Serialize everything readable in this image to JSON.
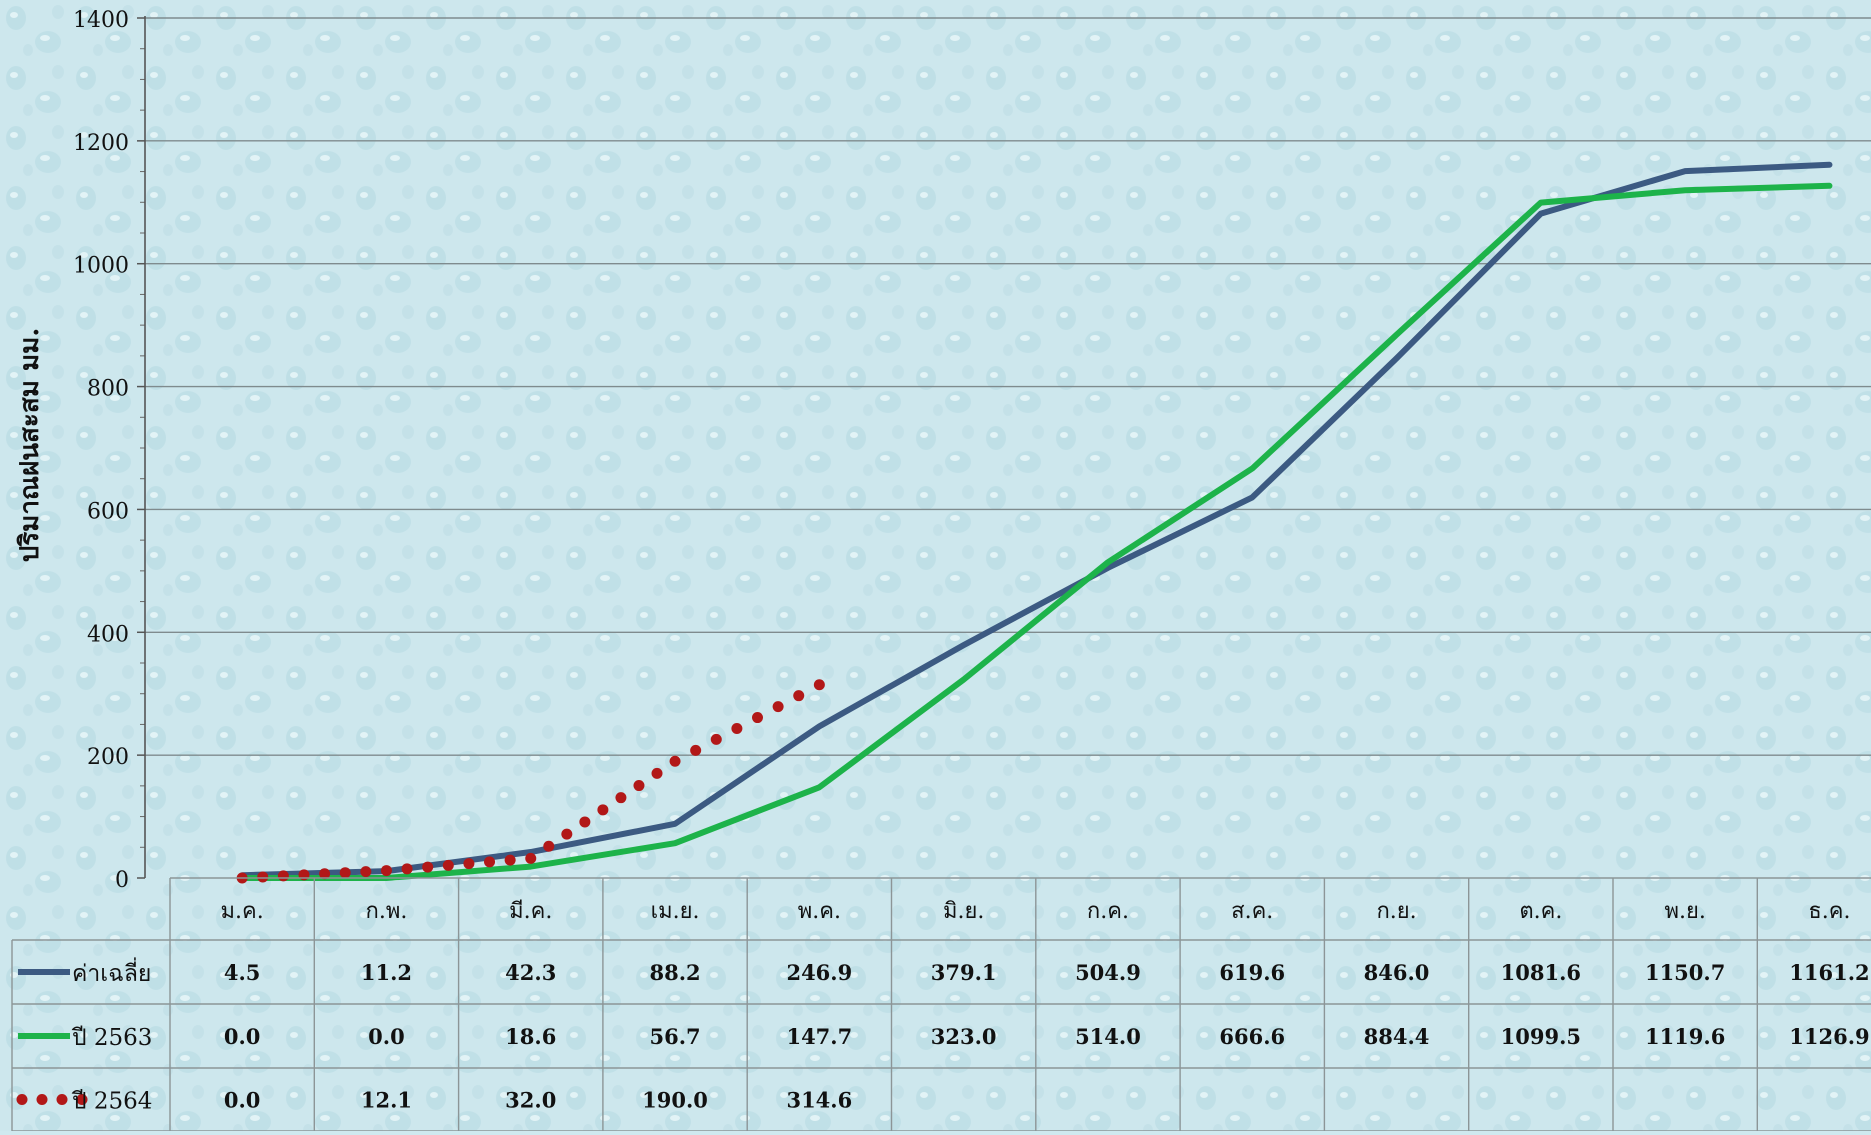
{
  "chart_data": {
    "type": "line",
    "ylabel": "ปริมาณฝนสะสม มม.",
    "ylim": [
      0,
      1400
    ],
    "yticks": [
      0,
      200,
      400,
      600,
      800,
      1000,
      1200,
      1400
    ],
    "categories": [
      "ม.ค.",
      "ก.พ.",
      "มี.ค.",
      "เม.ย.",
      "พ.ค.",
      "มิ.ย.",
      "ก.ค.",
      "ส.ค.",
      "ก.ย.",
      "ต.ค.",
      "พ.ย.",
      "ธ.ค."
    ],
    "grid": true,
    "legend": "data-table-left",
    "series": [
      {
        "name": "ค่าเฉลี่ย",
        "color": "#3c5a82",
        "style": "solid",
        "values": [
          4.5,
          11.2,
          42.3,
          88.2,
          246.9,
          379.1,
          504.9,
          619.6,
          846.0,
          1081.6,
          1150.7,
          1161.2
        ],
        "labels": [
          "4.5",
          "11.2",
          "42.3",
          "88.2",
          "246.9",
          "379.1",
          "504.9",
          "619.6",
          "846.0",
          "1081.6",
          "1150.7",
          "1161.2"
        ]
      },
      {
        "name": "ปี 2563",
        "color": "#1db34a",
        "style": "solid",
        "values": [
          0.0,
          0.0,
          18.6,
          56.7,
          147.7,
          323.0,
          514.0,
          666.6,
          884.4,
          1099.5,
          1119.6,
          1126.9
        ],
        "labels": [
          "0.0",
          "0.0",
          "18.6",
          "56.7",
          "147.7",
          "323.0",
          "514.0",
          "666.6",
          "884.4",
          "1099.5",
          "1119.6",
          "1126.9"
        ]
      },
      {
        "name": "ปี 2564",
        "color": "#b21818",
        "style": "dotted",
        "values": [
          0.0,
          12.1,
          32.0,
          190.0,
          314.6,
          null,
          null,
          null,
          null,
          null,
          null,
          null
        ],
        "labels": [
          "0.0",
          "12.1",
          "32.0",
          "190.0",
          "314.6",
          "",
          "",
          "",
          "",
          "",
          "",
          ""
        ]
      }
    ]
  }
}
